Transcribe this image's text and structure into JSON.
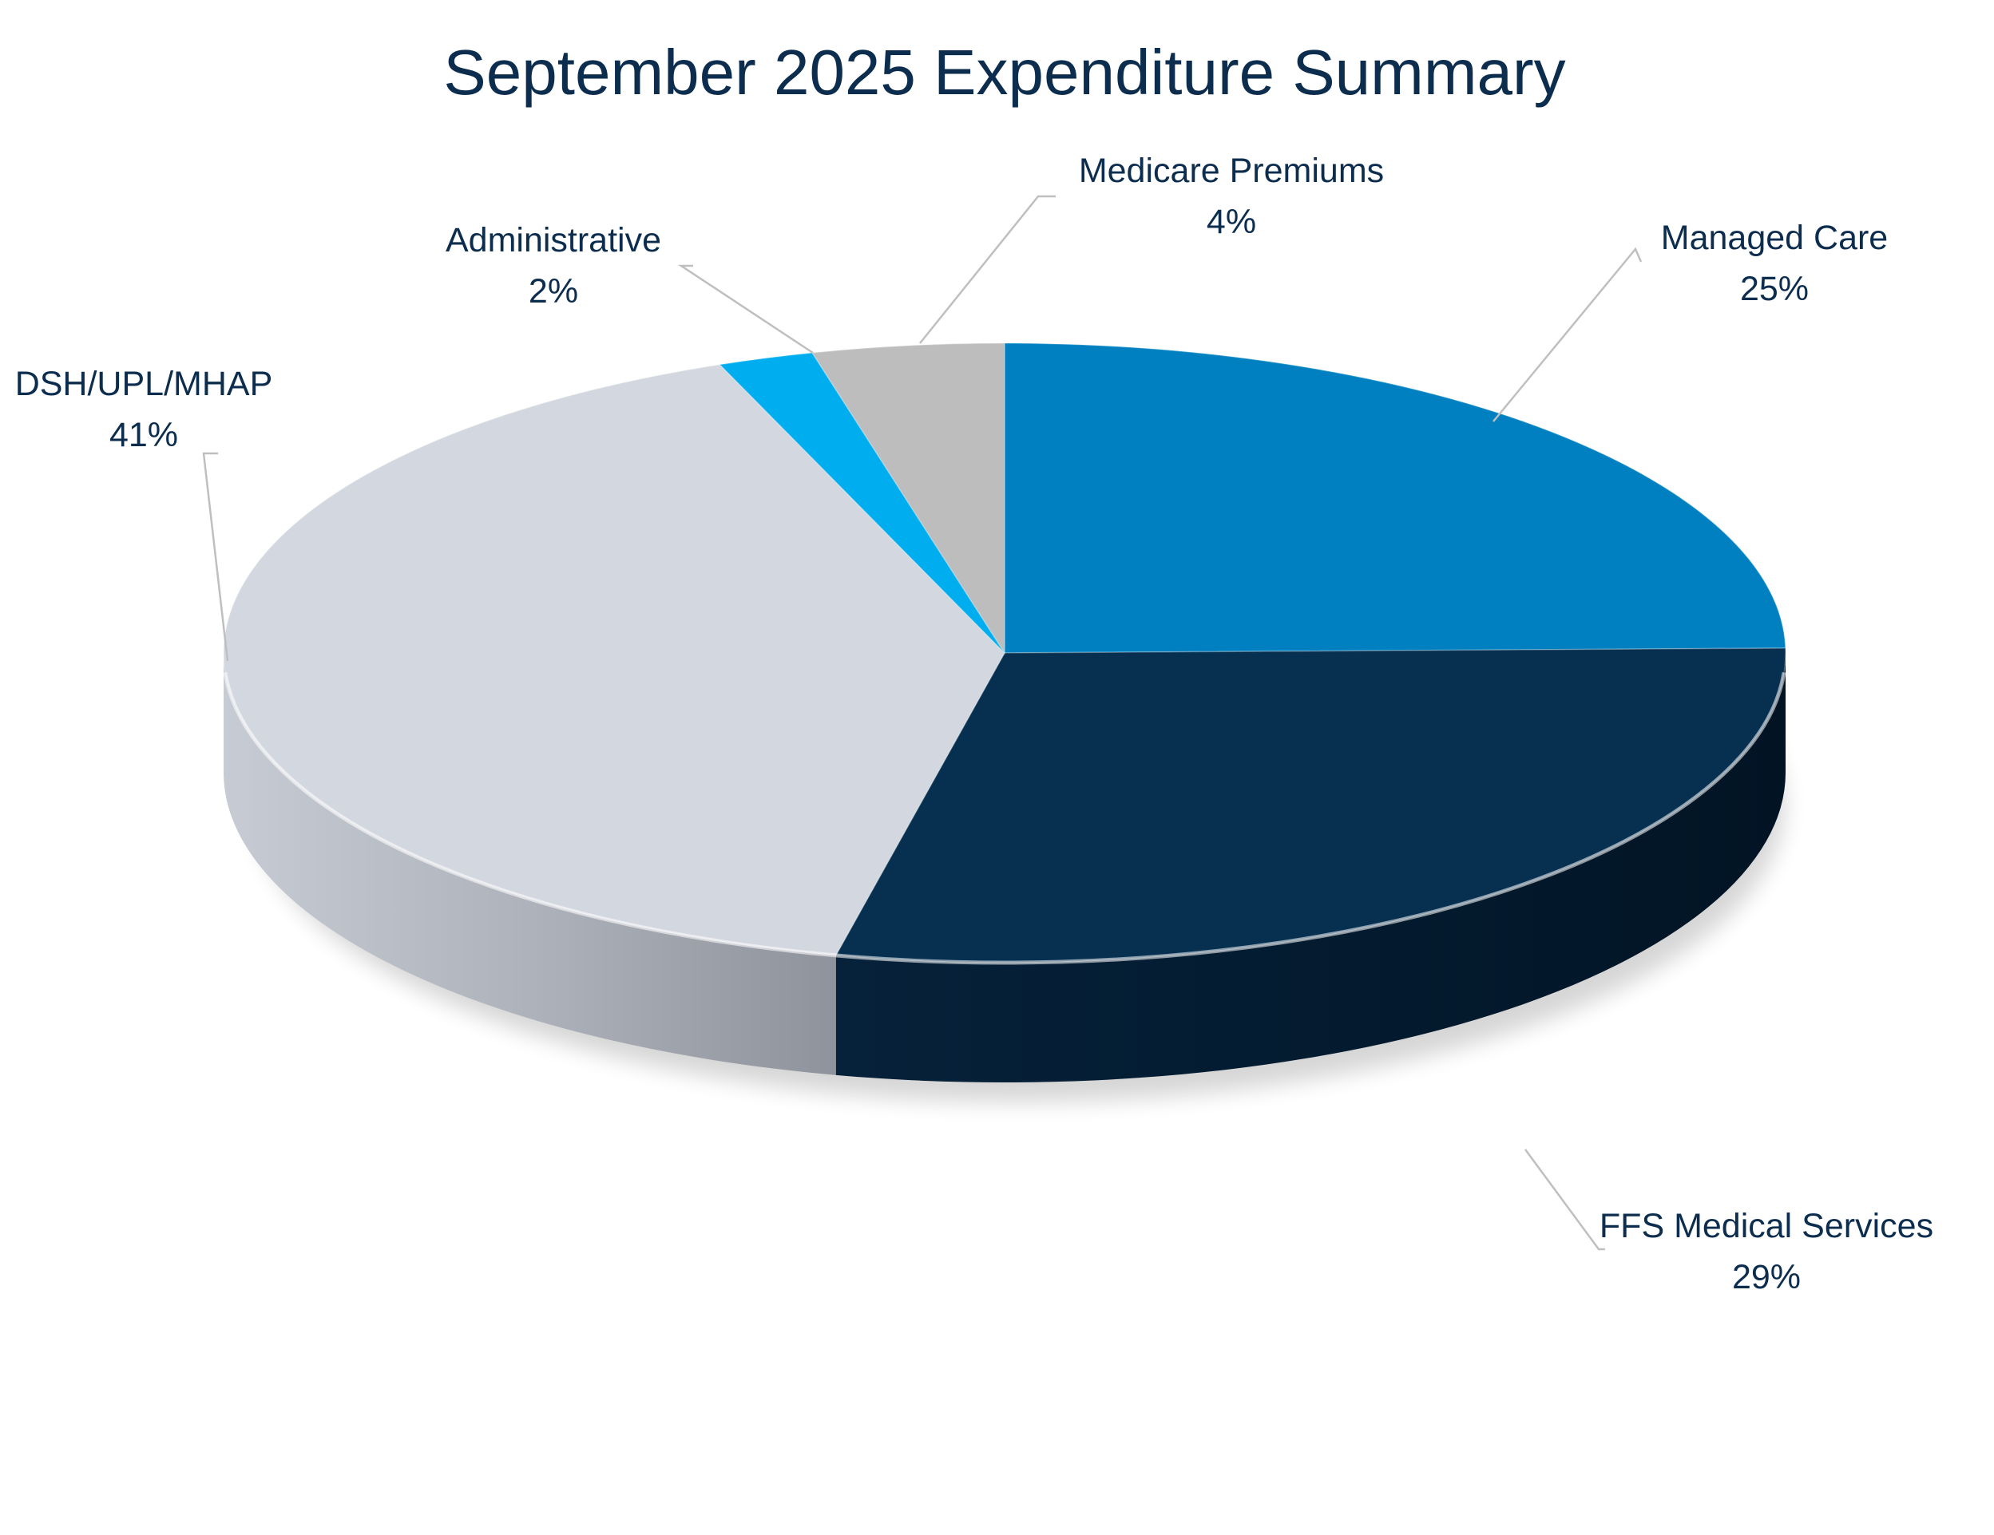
{
  "chart_data": {
    "type": "pie",
    "title": "September 2025 Expenditure Summary",
    "slices": [
      {
        "label": "Managed Care",
        "value": 25,
        "percent_label": "25%",
        "color": "#0080C0"
      },
      {
        "label": "FFS Medical Services",
        "value": 29,
        "percent_label": "29%",
        "color": "#062F50"
      },
      {
        "label": "DSH/UPL/MHAP",
        "value": 41,
        "percent_label": "41%",
        "color": "#D3D8E0"
      },
      {
        "label": "Administrative",
        "value": 2,
        "percent_label": "2%",
        "color": "#00AEEF"
      },
      {
        "label": "Medicare Premiums",
        "value": 4,
        "percent_label": "4%",
        "color": "#BDBDBD"
      }
    ],
    "label_color": "#0D2D4F",
    "leader_color": "#BFBFBF",
    "legend": "none",
    "style": "3d"
  }
}
